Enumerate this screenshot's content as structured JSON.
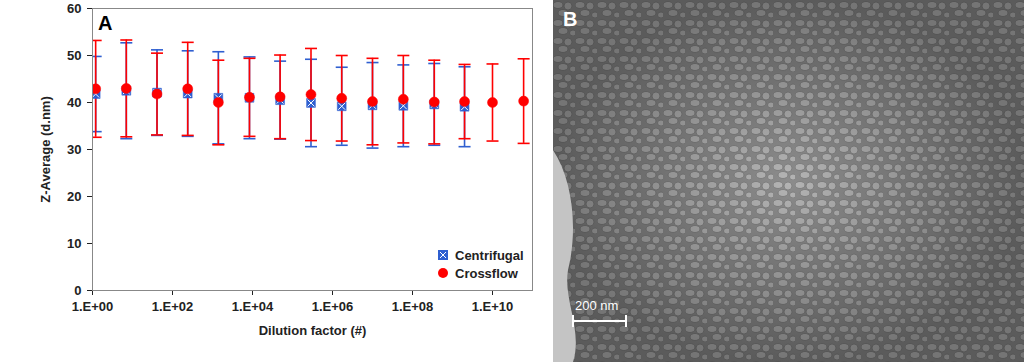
{
  "chart_data": {
    "type": "scatter",
    "annotations": [
      "A"
    ],
    "x_label": "Dilution factor (#)",
    "y_label": "Z-Average (d.nm)",
    "log": "x",
    "grid": false,
    "legend": "lower right",
    "xlim": [
      1,
      100000000000.0
    ],
    "xticks": [
      {
        "value": 1,
        "label": "1.E+00"
      },
      {
        "value": 100,
        "label": "1.E+02"
      },
      {
        "value": 10000,
        "label": "1.E+04"
      },
      {
        "value": 1000000,
        "label": "1.E+06"
      },
      {
        "value": 100000000,
        "label": "1.E+08"
      },
      {
        "value": 10000000000,
        "label": "1.E+10"
      }
    ],
    "ylim": [
      0,
      60
    ],
    "yticks": [
      0,
      10,
      20,
      30,
      40,
      50,
      60
    ],
    "x": [
      1.2,
      7,
      41,
      240,
      1400,
      8400,
      49000,
      290000,
      1700000,
      10000000,
      59000000,
      350000000,
      2000000000,
      10000000000,
      60000000000
    ],
    "series": [
      {
        "name": "Centrifugal",
        "color": "#2f5fd0",
        "marker": "square",
        "values": [
          41.8,
          42.5,
          42.1,
          41.9,
          41.0,
          41.0,
          40.5,
          39.9,
          39.2,
          39.4,
          39.3,
          39.6,
          39.1,
          null,
          null
        ],
        "errors": [
          8.0,
          10.2,
          9.1,
          9.1,
          9.8,
          8.7,
          8.3,
          9.3,
          8.3,
          9.1,
          8.7,
          8.7,
          8.5,
          null,
          null
        ]
      },
      {
        "name": "Crossflow",
        "color": "#ff0000",
        "marker": "circle",
        "values": [
          42.9,
          43.0,
          41.8,
          42.9,
          40.0,
          41.1,
          41.2,
          41.7,
          40.9,
          40.2,
          40.7,
          40.1,
          40.2,
          40.0,
          40.3
        ],
        "errors": [
          10.3,
          10.3,
          8.7,
          9.9,
          9.0,
          8.3,
          8.9,
          9.8,
          9.1,
          9.2,
          9.3,
          8.9,
          7.9,
          8.2,
          9.0
        ]
      }
    ]
  },
  "image_panel": {
    "label": "B",
    "scale_bar": "200 nm"
  }
}
